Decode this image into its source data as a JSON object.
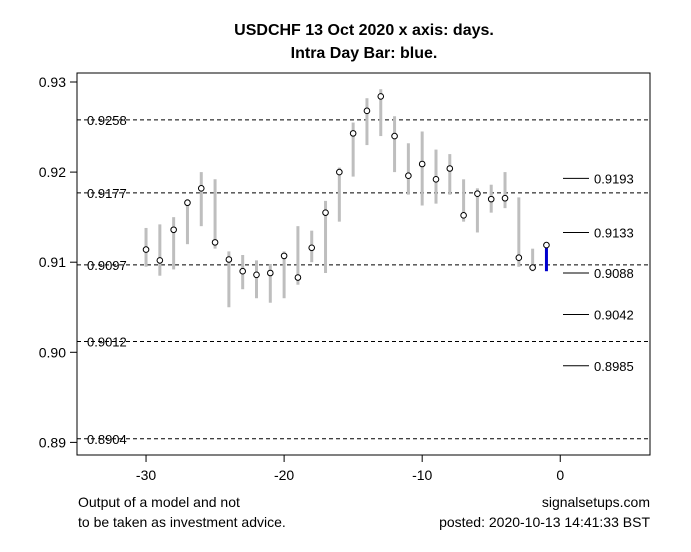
{
  "chart_data": {
    "type": "candlestick-range",
    "title": "USDCHF 13 Oct 2020 x axis: days.",
    "subtitle": "Intra Day Bar: blue.",
    "xlabel": "",
    "ylabel": "",
    "xlim": [
      -35,
      6.5
    ],
    "ylim": [
      0.8886,
      0.931
    ],
    "x_ticks": [
      -30,
      -20,
      -10,
      0
    ],
    "x_tick_labels": [
      "-30",
      "-20",
      "-10",
      "0"
    ],
    "y_ticks": [
      0.89,
      0.9,
      0.91,
      0.92,
      0.93
    ],
    "y_tick_labels": [
      "0.89",
      "0.90",
      "0.91",
      "0.92",
      "0.93"
    ],
    "grid": false,
    "dashed_levels": [
      {
        "value": 0.9258,
        "label": "0.9258"
      },
      {
        "value": 0.9177,
        "label": "0.9177"
      },
      {
        "value": 0.9097,
        "label": "0.9097"
      },
      {
        "value": 0.9012,
        "label": "0.9012"
      },
      {
        "value": 0.8904,
        "label": "0.8904"
      }
    ],
    "forecast_levels": [
      {
        "value": 0.9193,
        "label": "0.9193"
      },
      {
        "value": 0.9133,
        "label": "0.9133"
      },
      {
        "value": 0.9088,
        "label": "0.9088"
      },
      {
        "value": 0.9042,
        "label": "0.9042"
      },
      {
        "value": 0.8985,
        "label": "0.8985"
      }
    ],
    "bars": [
      {
        "x": -30,
        "low": 0.9095,
        "high": 0.9138,
        "close": 0.9114
      },
      {
        "x": -29,
        "low": 0.9085,
        "high": 0.9142,
        "close": 0.9102
      },
      {
        "x": -28,
        "low": 0.9092,
        "high": 0.915,
        "close": 0.9136
      },
      {
        "x": -27,
        "low": 0.912,
        "high": 0.917,
        "close": 0.9166
      },
      {
        "x": -26,
        "low": 0.914,
        "high": 0.92,
        "close": 0.9182
      },
      {
        "x": -25,
        "low": 0.9115,
        "high": 0.9192,
        "close": 0.9122
      },
      {
        "x": -24,
        "low": 0.905,
        "high": 0.9112,
        "close": 0.9103
      },
      {
        "x": -23,
        "low": 0.907,
        "high": 0.9108,
        "close": 0.909
      },
      {
        "x": -22,
        "low": 0.906,
        "high": 0.9102,
        "close": 0.9086
      },
      {
        "x": -21,
        "low": 0.9055,
        "high": 0.9098,
        "close": 0.9088
      },
      {
        "x": -20,
        "low": 0.906,
        "high": 0.9112,
        "close": 0.9107
      },
      {
        "x": -19,
        "low": 0.9075,
        "high": 0.914,
        "close": 0.9083
      },
      {
        "x": -18,
        "low": 0.91,
        "high": 0.9135,
        "close": 0.9116
      },
      {
        "x": -17,
        "low": 0.9088,
        "high": 0.9168,
        "close": 0.9155
      },
      {
        "x": -16,
        "low": 0.9145,
        "high": 0.9205,
        "close": 0.92
      },
      {
        "x": -15,
        "low": 0.9195,
        "high": 0.9255,
        "close": 0.9243
      },
      {
        "x": -14,
        "low": 0.923,
        "high": 0.9282,
        "close": 0.9268
      },
      {
        "x": -13,
        "low": 0.924,
        "high": 0.9292,
        "close": 0.9284
      },
      {
        "x": -12,
        "low": 0.92,
        "high": 0.9262,
        "close": 0.924
      },
      {
        "x": -11,
        "low": 0.9175,
        "high": 0.9232,
        "close": 0.9196
      },
      {
        "x": -10,
        "low": 0.9163,
        "high": 0.9245,
        "close": 0.9209
      },
      {
        "x": -9,
        "low": 0.9165,
        "high": 0.9225,
        "close": 0.9192
      },
      {
        "x": -8,
        "low": 0.9175,
        "high": 0.922,
        "close": 0.9204
      },
      {
        "x": -7,
        "low": 0.9145,
        "high": 0.9192,
        "close": 0.9152
      },
      {
        "x": -6,
        "low": 0.9133,
        "high": 0.9182,
        "close": 0.9176
      },
      {
        "x": -5,
        "low": 0.9155,
        "high": 0.9186,
        "close": 0.917
      },
      {
        "x": -4,
        "low": 0.916,
        "high": 0.92,
        "close": 0.9171
      },
      {
        "x": -3,
        "low": 0.9095,
        "high": 0.9172,
        "close": 0.9105
      },
      {
        "x": -2,
        "low": 0.909,
        "high": 0.9115,
        "close": 0.9094
      },
      {
        "x": -1,
        "low": 0.909,
        "high": 0.912,
        "close": 0.9119,
        "intraday": true
      }
    ],
    "colors": {
      "bar": "#bebebe",
      "intraday": "#0000cd",
      "close_point": "#000000"
    }
  },
  "footer": {
    "left_line1": "Output of a model and not",
    "left_line2": "to be taken as investment advice.",
    "right_line1": "signalsetups.com",
    "right_line2": "posted: 2020-10-13 14:41:33 BST"
  }
}
